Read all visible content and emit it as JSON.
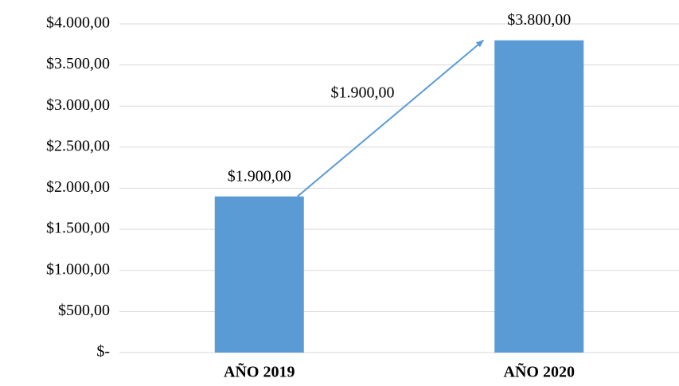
{
  "chart_data": {
    "type": "bar",
    "categories": [
      "AÑO 2019",
      "AÑO 2020"
    ],
    "values": [
      1900,
      3800
    ],
    "value_labels": [
      "$1.900,00",
      "$3.800,00"
    ],
    "color": "#5b9bd5",
    "ylim": [
      0,
      4000
    ],
    "yticks": [
      {
        "value": 0,
        "label": "$-"
      },
      {
        "value": 500,
        "label": "$500,00"
      },
      {
        "value": 1000,
        "label": "$1.000,00"
      },
      {
        "value": 1500,
        "label": "$1.500,00"
      },
      {
        "value": 2000,
        "label": "$2.000,00"
      },
      {
        "value": 2500,
        "label": "$2.500,00"
      },
      {
        "value": 3000,
        "label": "$3.000,00"
      },
      {
        "value": 3500,
        "label": "$3.500,00"
      },
      {
        "value": 4000,
        "label": "$4.000,00"
      }
    ],
    "grid": true,
    "annotation": "$1.900,00"
  }
}
